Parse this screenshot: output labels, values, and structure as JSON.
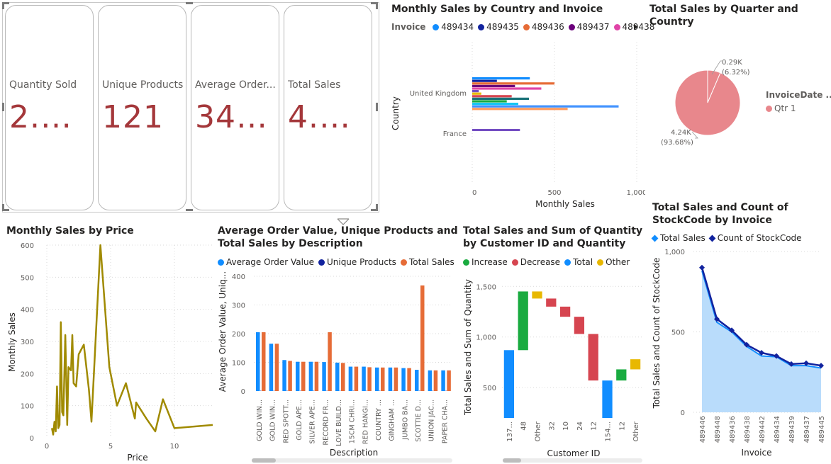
{
  "cards": [
    {
      "label": "Quantity Sold",
      "value": "2.0..."
    },
    {
      "label": "Unique Products",
      "value": "121"
    },
    {
      "label": "Average Order...",
      "value": "347..."
    },
    {
      "label": "Total Sales",
      "value": "4.5..."
    }
  ],
  "country_chart": {
    "title": "Monthly Sales by Country and Invoice",
    "legend_title": "Invoice",
    "legend": [
      {
        "name": "489434",
        "color": "#118dff"
      },
      {
        "name": "489435",
        "color": "#12239e"
      },
      {
        "name": "489436",
        "color": "#e66c37"
      },
      {
        "name": "489437",
        "color": "#6b007b"
      },
      {
        "name": "489438",
        "color": "#e044a7"
      }
    ],
    "ylabel": "Country",
    "xlabel": "Monthly Sales",
    "xticks": [
      "0",
      "500",
      "1,000"
    ],
    "categories": [
      "United Kingdom",
      "France"
    ]
  },
  "pie_chart": {
    "title": "Total Sales by Quarter and Country",
    "legend_title": "InvoiceDate ...",
    "legend_item": "Qtr 1",
    "legend_color": "#e8878c",
    "label_small_1": "0.29K",
    "label_small_2": "(6.32%)",
    "label_large_1": "4.24K",
    "label_large_2": "(93.68%)"
  },
  "price_chart": {
    "title": "Monthly Sales by Price",
    "ylabel": "Monthly Sales",
    "xlabel": "Price",
    "yticks": [
      "0",
      "100",
      "200",
      "300",
      "400",
      "500",
      "600"
    ],
    "xticks": [
      "0",
      "5",
      "10"
    ],
    "color": "#a08a00"
  },
  "desc_chart": {
    "title": "Average Order Value, Unique Products and Total Sales by Description",
    "legend": [
      {
        "name": "Average Order Value",
        "color": "#118dff"
      },
      {
        "name": "Unique Products",
        "color": "#12239e"
      },
      {
        "name": "Total Sales",
        "color": "#e66c37"
      }
    ],
    "ylabel": "Average Order Value, Uniq...",
    "xlabel": "Description",
    "yticks": [
      "0",
      "100",
      "200",
      "300",
      "400"
    ],
    "categories": [
      "GOLD WIN...",
      "GOLD WIN...",
      "RED SPOTT...",
      "GOLD APE...",
      "SILVER APE...",
      "RECORD FR...",
      "LOVE BUILD...",
      "15CM CHRI...",
      "RED HANGI...",
      "COUNTRY ...",
      "GINGHAM ...",
      "JUMBO BA...",
      "SCOTTIE D...",
      "UNION JAC...",
      "PAPER CHA..."
    ]
  },
  "waterfall_chart": {
    "title": "Total Sales and Sum of Quantity by Customer ID and Quantity",
    "legend": [
      {
        "name": "Increase",
        "color": "#1aab40"
      },
      {
        "name": "Decrease",
        "color": "#d64550"
      },
      {
        "name": "Total",
        "color": "#118dff"
      },
      {
        "name": "Other",
        "color": "#e8b800"
      }
    ],
    "ylabel": "Total Sales and Sum of Quantity",
    "xlabel": "Customer ID",
    "yticks": [
      "500",
      "1,000",
      "1,500"
    ],
    "categories": [
      "137...",
      "48",
      "Other",
      "32",
      "10",
      "24",
      "12",
      "154...",
      "12",
      "Other"
    ]
  },
  "invoice_chart": {
    "title": "Total Sales and Count of StockCode by Invoice",
    "legend": [
      {
        "name": "Total Sales",
        "color": "#118dff"
      },
      {
        "name": "Count of StockCode",
        "color": "#12239e"
      }
    ],
    "ylabel": "Total Sales and Count of StockCode",
    "xlabel": "Invoice",
    "yticks": [
      "0",
      "500",
      "1,000"
    ],
    "categories": [
      "489446",
      "489448",
      "489436",
      "489438",
      "489442",
      "489434",
      "489439",
      "489437",
      "489445"
    ]
  },
  "chart_data": [
    {
      "type": "bar",
      "title": "Monthly Sales by Country and Invoice",
      "orientation": "horizontal",
      "xlabel": "Monthly Sales",
      "ylabel": "Country",
      "xlim": [
        0,
        1000
      ],
      "categories": [
        "United Kingdom",
        "France"
      ],
      "groups": [
        {
          "category": "United Kingdom",
          "values": [
            {
              "value": 350,
              "color": "#118dff"
            },
            {
              "value": 150,
              "color": "#12239e"
            },
            {
              "value": 500,
              "color": "#e66c37"
            },
            {
              "value": 260,
              "color": "#6b007b"
            },
            {
              "value": 420,
              "color": "#e044a7"
            },
            {
              "value": 40,
              "color": "#744ec2"
            },
            {
              "value": 55,
              "color": "#e8b800"
            },
            {
              "value": 240,
              "color": "#d64550"
            },
            {
              "value": 345,
              "color": "#197278"
            },
            {
              "value": 210,
              "color": "#1aab40"
            },
            {
              "value": 280,
              "color": "#15c6f4"
            },
            {
              "value": 890,
              "color": "#4092ff"
            },
            {
              "value": 580,
              "color": "#ff9a5e"
            }
          ]
        },
        {
          "category": "France",
          "values": [
            {
              "value": 290,
              "color": "#744ec2"
            }
          ]
        }
      ]
    },
    {
      "type": "pie",
      "title": "Total Sales by Quarter and Country",
      "slices": [
        {
          "label": "0.29K",
          "value": 0.29,
          "percent": 6.32
        },
        {
          "label": "4.24K",
          "value": 4.24,
          "percent": 93.68
        }
      ]
    },
    {
      "type": "line",
      "title": "Monthly Sales by Price",
      "xlabel": "Price",
      "ylabel": "Monthly Sales",
      "xlim": [
        0,
        13
      ],
      "ylim": [
        0,
        600
      ],
      "x": [
        0.4,
        0.5,
        0.6,
        0.7,
        0.8,
        0.9,
        1.0,
        1.1,
        1.2,
        1.3,
        1.45,
        1.6,
        1.7,
        1.9,
        2.0,
        2.1,
        2.3,
        2.5,
        2.9,
        3.3,
        3.5,
        4.2,
        4.9,
        5.5,
        6.2,
        6.9,
        7.0,
        7.8,
        8.5,
        9.1,
        10.0,
        13.0
      ],
      "y": [
        30,
        10,
        50,
        20,
        160,
        30,
        40,
        360,
        80,
        70,
        320,
        40,
        220,
        210,
        320,
        170,
        160,
        260,
        290,
        150,
        50,
        600,
        220,
        100,
        170,
        60,
        110,
        60,
        20,
        120,
        30,
        40
      ]
    },
    {
      "type": "bar",
      "title": "Average Order Value, Unique Products and Total Sales by Description",
      "xlabel": "Description",
      "ylabel": "Average Order Value, Uniq...",
      "ylim": [
        0,
        400
      ],
      "categories": [
        "GOLD WIN...",
        "GOLD WIN...",
        "RED SPOTT...",
        "GOLD APE...",
        "SILVER APE...",
        "RECORD FR...",
        "LOVE BUILD...",
        "15CM CHRI...",
        "RED HANGI...",
        "COUNTRY ...",
        "GINGHAM ...",
        "JUMBO BA...",
        "SCOTTIE D...",
        "UNION JAC...",
        "PAPER CHA..."
      ],
      "series": [
        {
          "name": "Average Order Value",
          "values": [
            205,
            165,
            108,
            102,
            102,
            101,
            99,
            85,
            85,
            82,
            82,
            80,
            74,
            72,
            72
          ]
        },
        {
          "name": "Unique Products",
          "values": [
            1,
            1,
            1,
            1,
            1,
            1,
            1,
            1,
            1,
            1,
            1,
            1,
            1,
            1,
            1
          ]
        },
        {
          "name": "Total Sales",
          "values": [
            205,
            165,
            105,
            102,
            102,
            205,
            98,
            85,
            83,
            82,
            82,
            80,
            368,
            72,
            72
          ]
        }
      ]
    },
    {
      "type": "bar",
      "title": "Total Sales and Sum of Quantity by Customer ID and Quantity",
      "xlabel": "Customer ID",
      "ylabel": "Total Sales and Sum of Quantity",
      "ylim": [
        200,
        1600
      ],
      "categories": [
        "137...",
        "48",
        "Other",
        "32",
        "10",
        "24",
        "12",
        "154...",
        "12",
        "Other"
      ],
      "waterfall": [
        {
          "start": 200,
          "end": 870,
          "kind": "Total"
        },
        {
          "start": 870,
          "end": 1450,
          "kind": "Increase"
        },
        {
          "start": 1450,
          "end": 1380,
          "kind": "Other"
        },
        {
          "start": 1380,
          "end": 1300,
          "kind": "Decrease"
        },
        {
          "start": 1300,
          "end": 1200,
          "kind": "Decrease"
        },
        {
          "start": 1200,
          "end": 1030,
          "kind": "Decrease"
        },
        {
          "start": 1030,
          "end": 570,
          "kind": "Decrease"
        },
        {
          "start": 570,
          "end": 200,
          "kind": "Total"
        },
        {
          "start": 570,
          "end": 680,
          "kind": "Increase"
        },
        {
          "start": 680,
          "end": 780,
          "kind": "Other"
        }
      ]
    },
    {
      "type": "area",
      "title": "Total Sales and Count of StockCode by Invoice",
      "xlabel": "Invoice",
      "ylabel": "Total Sales and Count of StockCode",
      "ylim": [
        0,
        1000
      ],
      "categories": [
        "489446",
        "489448",
        "489436",
        "489438",
        "489442",
        "489434",
        "489439",
        "489437",
        "489445"
      ],
      "series": [
        {
          "name": "Total Sales",
          "values": [
            880,
            560,
            500,
            410,
            350,
            345,
            290,
            290,
            275
          ]
        },
        {
          "name": "Count of StockCode",
          "values": [
            900,
            580,
            510,
            420,
            370,
            350,
            300,
            305,
            290
          ]
        }
      ]
    }
  ]
}
